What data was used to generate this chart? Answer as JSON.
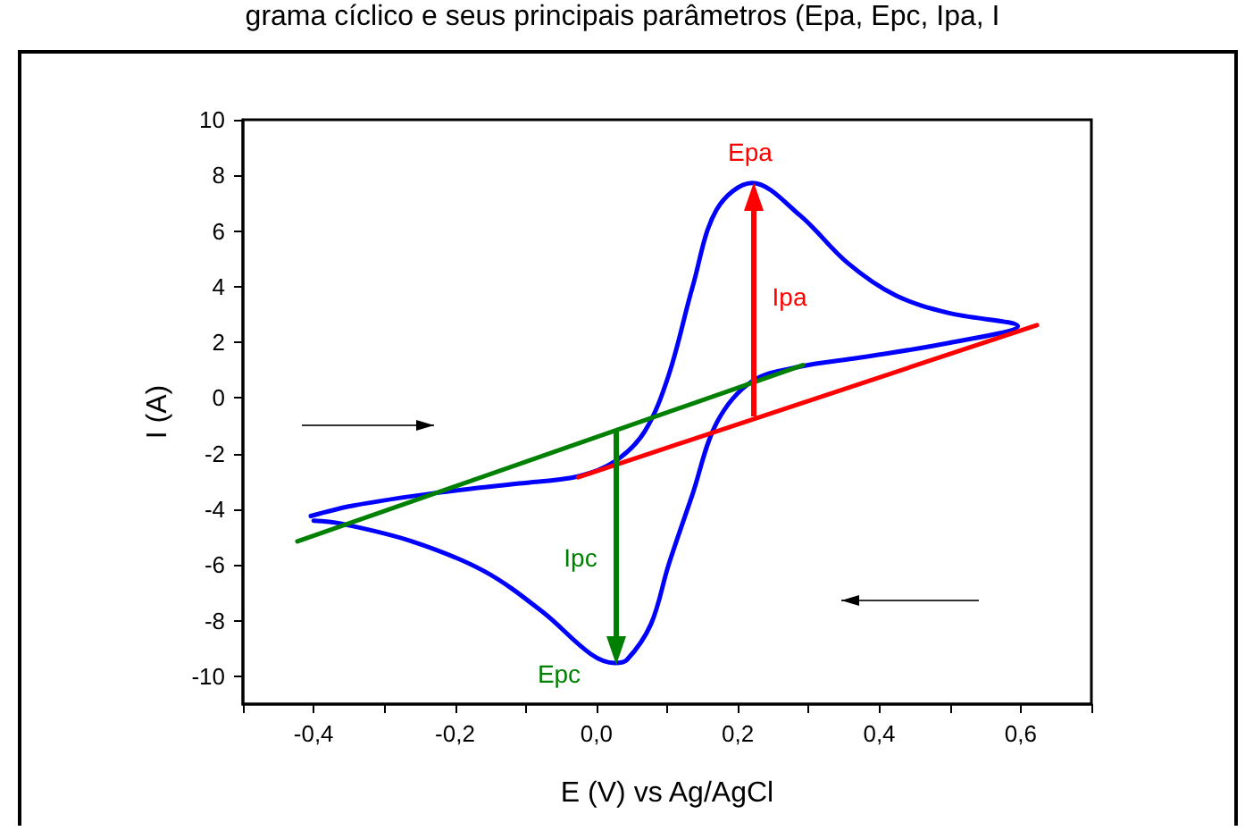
{
  "chart_data": {
    "type": "line",
    "title": "grama cíclico e seus principais parâmetros (Epa, Epc, Ipa, I",
    "xlabel": "E (V) vs Ag/AgCl",
    "ylabel": "I (A)",
    "xlim": [
      -0.5,
      0.7
    ],
    "ylim": [
      -11,
      10
    ],
    "xticks": [
      {
        "value": -0.5,
        "label": null
      },
      {
        "value": -0.4,
        "label": "-0,4"
      },
      {
        "value": -0.3,
        "label": null
      },
      {
        "value": -0.2,
        "label": "-0,2"
      },
      {
        "value": -0.1,
        "label": null
      },
      {
        "value": 0,
        "label": "0,0"
      },
      {
        "value": 0.1,
        "label": null
      },
      {
        "value": 0.2,
        "label": "0,2"
      },
      {
        "value": 0.3,
        "label": null
      },
      {
        "value": 0.4,
        "label": "0,4"
      },
      {
        "value": 0.5,
        "label": null
      },
      {
        "value": 0.6,
        "label": "0,6"
      },
      {
        "value": 0.7,
        "label": null
      }
    ],
    "yticks": [
      -10,
      -8,
      -6,
      -4,
      -2,
      0,
      2,
      4,
      6,
      8,
      10
    ],
    "grid": false,
    "marker": "none",
    "line_style": "solid",
    "series": [
      {
        "color": "#0000ff",
        "x": [
          -0.404,
          -0.345,
          -0.227,
          -0.109,
          -0.025,
          0.026,
          0.068,
          0.102,
          0.136,
          0.17,
          0.22,
          0.288,
          0.355,
          0.423,
          0.499,
          0.596,
          0.499,
          0.372,
          0.288,
          0.22,
          0.17,
          0.136,
          0.102,
          0.077,
          0.043,
          0.026,
          -0.008,
          -0.075,
          -0.159,
          -0.261,
          -0.362,
          -0.4
        ],
        "values": [
          -4.24,
          -3.87,
          -3.41,
          -3.07,
          -2.81,
          -2.28,
          -1.21,
          0.81,
          4.0,
          6.77,
          7.73,
          6.56,
          4.86,
          3.69,
          3.05,
          2.58,
          1.98,
          1.45,
          1.13,
          0.6,
          -0.89,
          -3.45,
          -6.0,
          -8.13,
          -9.41,
          -9.52,
          -9.2,
          -7.71,
          -6.22,
          -5.15,
          -4.51,
          -4.41
        ]
      },
      {
        "color": "#008000",
        "x": [
          -0.423,
          0.292
        ],
        "values": [
          -5.15,
          1.18
        ]
      },
      {
        "color": "#ff0000",
        "x": [
          -0.026,
          0.623
        ],
        "values": [
          -2.85,
          2.62
        ]
      }
    ],
    "annotations": [
      "Epa",
      "Ipa",
      "Ipc",
      "Epc"
    ]
  }
}
